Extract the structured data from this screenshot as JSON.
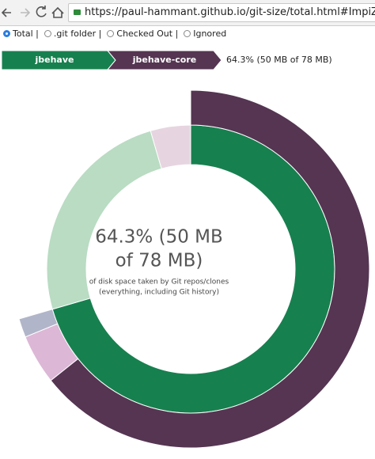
{
  "browser": {
    "url": "https://paul-hammant.github.io/git-size/total.html#ImpiZWhhdmUvamJlaGF"
  },
  "options": [
    {
      "label": "Total |",
      "selected": true
    },
    {
      "label": ".git folder |",
      "selected": false
    },
    {
      "label": "Checked Out |",
      "selected": false
    },
    {
      "label": "Ignored",
      "selected": false
    }
  ],
  "breadcrumb": {
    "items": [
      {
        "label": "jbehave",
        "color": "#17804f"
      },
      {
        "label": "jbehave-core",
        "color": "#553552"
      }
    ],
    "summary": "64.3% (50 MB of 78 MB)"
  },
  "chart_data": {
    "type": "sunburst",
    "center_title": [
      "64.3% (50 MB",
      "of 78 MB)"
    ],
    "center_subtitle": [
      "of disk space taken by Git repos/clones",
      "(everything, including Git history)"
    ],
    "rings": [
      {
        "values": [
          70.5,
          25,
          4.5
        ],
        "colors": [
          "#17804f",
          "#b9dcc3",
          "#e6d5e0"
        ]
      },
      {
        "values": [
          64.3,
          4.5,
          1.7
        ],
        "colors": [
          "#553552",
          "#dcb7d6",
          "#b1b5c9"
        ]
      }
    ]
  }
}
